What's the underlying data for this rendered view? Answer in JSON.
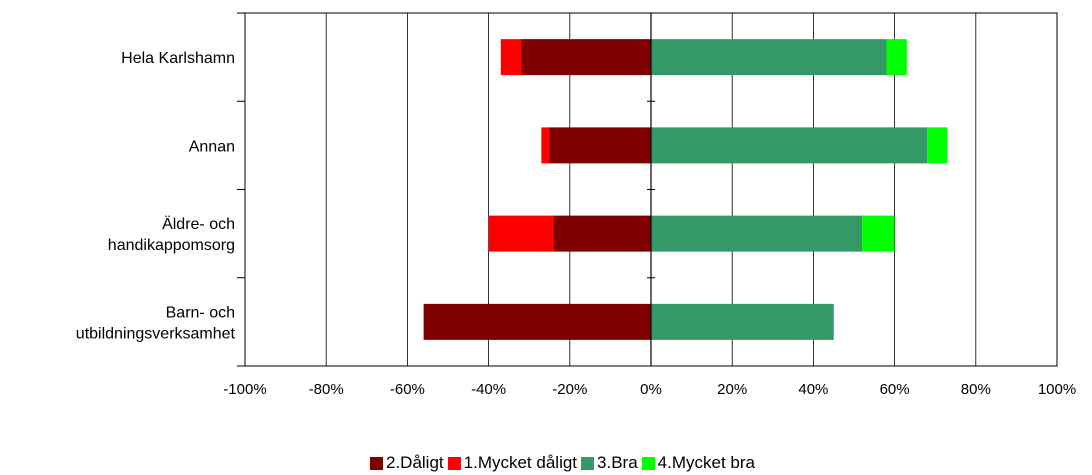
{
  "chart_data": {
    "type": "bar",
    "orientation": "horizontal",
    "stacked": "diverging",
    "categories": [
      "Hela Karlshamn",
      "Annan",
      "Äldre- och\nhandikappomsorg",
      "Barn- och\nutbildningsverksamhet"
    ],
    "series": [
      {
        "name": "2.Dåligt",
        "color": "#800000",
        "side": "negative",
        "values": [
          -32,
          -25,
          -24,
          -56
        ]
      },
      {
        "name": "1.Mycket dåligt",
        "color": "#ff0000",
        "side": "negative",
        "values": [
          -5,
          -2,
          -16,
          0
        ]
      },
      {
        "name": "3.Bra",
        "color": "#339966",
        "side": "positive",
        "values": [
          58,
          68,
          52,
          45
        ]
      },
      {
        "name": "4.Mycket bra",
        "color": "#00ff00",
        "side": "positive",
        "values": [
          5,
          5,
          8,
          0
        ]
      }
    ],
    "xlim": [
      -100,
      100
    ],
    "xticks": [
      "-100%",
      "-80%",
      "-60%",
      "-40%",
      "-20%",
      "0%",
      "20%",
      "40%",
      "60%",
      "80%",
      "100%"
    ],
    "grid": "vertical",
    "legend": "bottom",
    "title": "",
    "xlabel": "",
    "ylabel": ""
  }
}
